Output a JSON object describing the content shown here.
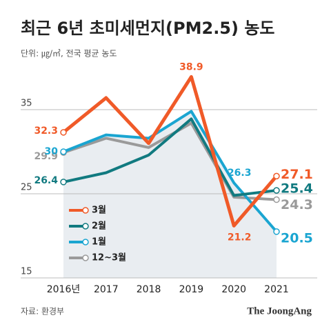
{
  "chart_data": {
    "type": "line",
    "title": "최근 6년 초미세먼지(PM2.5) 농도",
    "subtitle": "단위: ㎍/㎥, 전국 평균 농도",
    "source": "자료: 환경부",
    "logo": "The JoongAng",
    "categories": [
      "2016년",
      "2017",
      "2018",
      "2019",
      "2020",
      "2021"
    ],
    "series": [
      {
        "name": "12~3월",
        "color": "#9a9a9a",
        "values": [
          29.9,
          31.6,
          30.5,
          33.4,
          24.6,
          24.3
        ]
      },
      {
        "name": "1월",
        "color": "#1aa5d1",
        "values": [
          30.0,
          32.0,
          31.6,
          34.8,
          26.3,
          20.5
        ]
      },
      {
        "name": "2월",
        "color": "#117a80",
        "values": [
          26.4,
          27.5,
          29.6,
          33.9,
          24.8,
          25.4
        ]
      },
      {
        "name": "3월",
        "color": "#f05a28",
        "values": [
          32.3,
          36.4,
          31.0,
          38.9,
          21.2,
          27.1
        ]
      }
    ],
    "ylim": [
      15,
      40
    ],
    "yticks": [
      15,
      25,
      35
    ],
    "grid": true
  }
}
